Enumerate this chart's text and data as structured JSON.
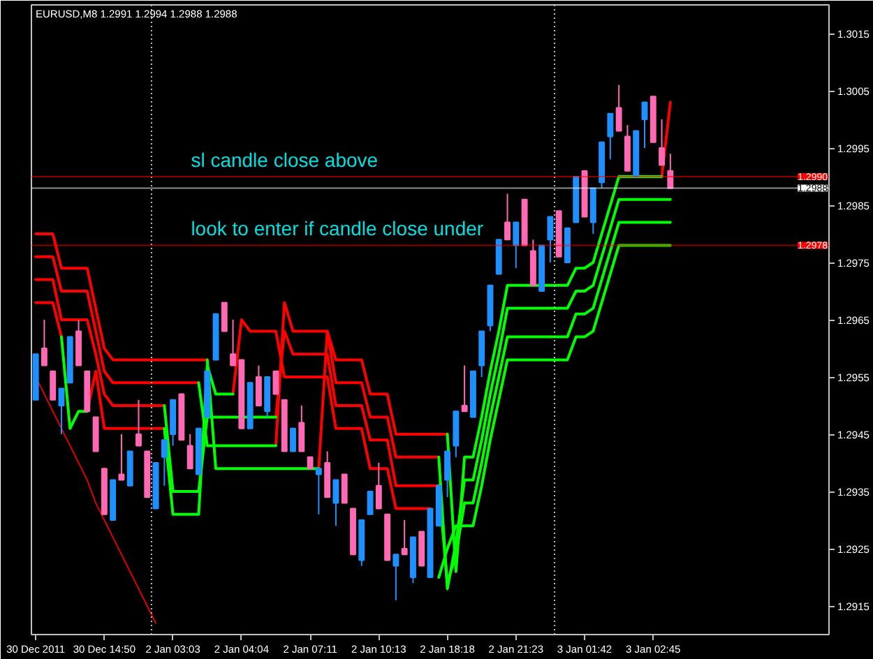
{
  "chart_data": {
    "type": "candlestick",
    "title": "EURUSD,M8 1.2991 1.2994 1.2988 1.2988",
    "categories": [
      "30 Dec 2011",
      null,
      null,
      null,
      null,
      null,
      null,
      null,
      "30 Dec 14:50",
      null,
      null,
      null,
      null,
      null,
      null,
      null,
      "2 Jan 03:03",
      null,
      null,
      null,
      null,
      null,
      null,
      null,
      "2 Jan 04:04",
      null,
      null,
      null,
      null,
      null,
      null,
      null,
      "2 Jan 07:11",
      null,
      null,
      null,
      null,
      null,
      null,
      null,
      "2 Jan 10:13",
      null,
      null,
      null,
      null,
      null,
      null,
      null,
      "2 Jan 18:18",
      null,
      null,
      null,
      null,
      null,
      null,
      null,
      "2 Jan 21:23",
      null,
      null,
      null,
      null,
      null,
      null,
      null,
      "3 Jan 01:42",
      null,
      null,
      null,
      null,
      null,
      null,
      null,
      "3 Jan 02:45",
      null,
      null,
      null,
      null,
      null,
      null,
      null,
      null,
      null,
      null,
      null,
      null,
      null,
      null,
      null,
      null,
      null,
      null,
      null,
      null
    ],
    "ohlc": [
      [
        1.2951,
        1.2959,
        1.2951,
        1.2959
      ],
      [
        1.296,
        1.2965,
        1.2957,
        1.2957
      ],
      [
        1.2956,
        1.2956,
        1.2951,
        1.2951
      ],
      [
        1.295,
        1.2953,
        1.2945,
        1.2953
      ],
      [
        1.2954,
        1.2962,
        1.2954,
        1.2962
      ],
      [
        1.2963,
        1.2965,
        1.2957,
        1.2957
      ],
      [
        1.2956,
        1.2956,
        1.2949,
        1.2949
      ],
      [
        1.2948,
        1.2948,
        1.2942,
        1.2942
      ],
      [
        1.2939,
        1.2939,
        1.2931,
        1.2931
      ],
      [
        1.293,
        1.2937,
        1.293,
        1.2937
      ],
      [
        1.2938,
        1.2945,
        1.2937,
        1.2937
      ],
      [
        1.2936,
        1.2942,
        1.2936,
        1.2942
      ],
      [
        1.2945,
        1.2951,
        1.2943,
        1.2943
      ],
      [
        1.2942,
        1.2942,
        1.2934,
        1.2934
      ],
      [
        1.2932,
        1.294,
        1.2932,
        1.294
      ],
      [
        1.2941,
        1.2944,
        1.2936,
        1.2944
      ],
      [
        1.2945,
        1.2951,
        1.2943,
        1.2951
      ],
      [
        1.2952,
        1.2952,
        1.2944,
        1.2944
      ],
      [
        1.2943,
        1.2945,
        1.2939,
        1.2939
      ],
      [
        1.2938,
        1.2946,
        1.2938,
        1.2946
      ],
      [
        1.2948,
        1.2956,
        1.2948,
        1.2956
      ],
      [
        1.2958,
        1.2966,
        1.2958,
        1.2966
      ],
      [
        1.2968,
        1.2968,
        1.2963,
        1.2963
      ],
      [
        1.2959,
        1.2965,
        1.2957,
        1.2957
      ],
      [
        1.2958,
        1.2958,
        1.2946,
        1.2946
      ],
      [
        1.2946,
        1.2954,
        1.2946,
        1.2954
      ],
      [
        1.2955,
        1.2957,
        1.295,
        1.295
      ],
      [
        1.2949,
        1.2955,
        1.2948,
        1.2955
      ],
      [
        1.2956,
        1.2956,
        1.2952,
        1.2952
      ],
      [
        1.2951,
        1.2951,
        1.2942,
        1.2942
      ],
      [
        1.2942,
        1.2946,
        1.2942,
        1.2946
      ],
      [
        1.2947,
        1.295,
        1.2942,
        1.2942
      ],
      [
        1.2941,
        1.2941,
        1.2939,
        1.2939
      ],
      [
        1.2938,
        1.2939,
        1.2931,
        1.2939
      ],
      [
        1.294,
        1.2942,
        1.2934,
        1.2934
      ],
      [
        1.2933,
        1.2937,
        1.2929,
        1.2937
      ],
      [
        1.2938,
        1.2938,
        1.2933,
        1.2933
      ],
      [
        1.2932,
        1.2932,
        1.2924,
        1.2924
      ],
      [
        1.2923,
        1.293,
        1.2922,
        1.293
      ],
      [
        1.2931,
        1.2935,
        1.2931,
        1.2935
      ],
      [
        1.2936,
        1.294,
        1.2932,
        1.2932
      ],
      [
        1.2931,
        1.2931,
        1.2923,
        1.2923
      ],
      [
        1.2922,
        1.2924,
        1.2916,
        1.2924
      ],
      [
        1.2925,
        1.293,
        1.2924,
        1.2924
      ],
      [
        1.292,
        1.2927,
        1.2919,
        1.2927
      ],
      [
        1.2928,
        1.2928,
        1.2922,
        1.2922
      ],
      [
        1.292,
        1.2932,
        1.292,
        1.2932
      ],
      [
        1.2929,
        1.2936,
        1.2929,
        1.2936
      ],
      [
        1.2937,
        1.2942,
        1.2934,
        1.2942
      ],
      [
        1.2943,
        1.2949,
        1.2941,
        1.2949
      ],
      [
        1.295,
        1.2957,
        1.2949,
        1.2949
      ],
      [
        1.2948,
        1.2956,
        1.2948,
        1.2956
      ],
      [
        1.2957,
        1.2963,
        1.2955,
        1.2963
      ],
      [
        1.2964,
        1.2971,
        1.2963,
        1.2971
      ],
      [
        1.2973,
        1.2979,
        1.2973,
        1.2979
      ],
      [
        1.2982,
        1.2987,
        1.2979,
        1.2979
      ],
      [
        1.2978,
        1.2982,
        1.2974,
        1.2982
      ],
      [
        1.2986,
        1.2986,
        1.2978,
        1.2978
      ],
      [
        1.2977,
        1.2979,
        1.2971,
        1.2971
      ],
      [
        1.297,
        1.2978,
        1.297,
        1.2978
      ],
      [
        1.2979,
        1.2983,
        1.2975,
        1.2983
      ],
      [
        1.2984,
        1.2984,
        1.2976,
        1.2976
      ],
      [
        1.2975,
        1.2981,
        1.2975,
        1.2981
      ],
      [
        1.2982,
        1.299,
        1.2982,
        1.299
      ],
      [
        1.2991,
        1.2991,
        1.2983,
        1.2983
      ],
      [
        1.2982,
        1.2988,
        1.298,
        1.2988
      ],
      [
        1.2989,
        1.2996,
        1.2988,
        1.2996
      ],
      [
        1.2997,
        1.3001,
        1.2993,
        1.3001
      ],
      [
        1.3002,
        1.3006,
        1.2998,
        1.2998
      ],
      [
        1.2997,
        1.2999,
        1.2991,
        1.2991
      ],
      [
        1.299,
        1.2998,
        1.299,
        1.2998
      ],
      [
        1.3,
        1.3003,
        1.2995,
        1.3003
      ],
      [
        1.3004,
        1.3004,
        1.2996,
        1.2996
      ],
      [
        1.2995,
        1.3,
        1.2992,
        1.2992
      ],
      [
        1.2991,
        1.2994,
        1.2988,
        1.2988
      ],
      null,
      null,
      null,
      null,
      null,
      null,
      null,
      null,
      null,
      null,
      null,
      null,
      null,
      null,
      null,
      null,
      null,
      null
    ],
    "colors": [
      "#1e90ff",
      "#ff69b4",
      "#ff69b4",
      "#1e90ff",
      "#1e90ff",
      "#ff69b4",
      "#ff69b4",
      "#ff69b4",
      "#ff69b4",
      "#1e90ff",
      "#ff69b4",
      "#1e90ff",
      "#ff69b4",
      "#ff69b4",
      "#1e90ff",
      "#1e90ff",
      "#1e90ff",
      "#ff69b4",
      "#ff69b4",
      "#1e90ff",
      "#1e90ff",
      "#1e90ff",
      "#ff69b4",
      "#ff69b4",
      "#ff69b4",
      "#1e90ff",
      "#ff69b4",
      "#1e90ff",
      "#ff69b4",
      "#ff69b4",
      "#1e90ff",
      "#ff69b4",
      "#ff69b4",
      "#1e90ff",
      "#ff69b4",
      "#1e90ff",
      "#ff69b4",
      "#ff69b4",
      "#1e90ff",
      "#1e90ff",
      "#ff69b4",
      "#ff69b4",
      "#1e90ff",
      "#ff69b4",
      "#1e90ff",
      "#ff69b4",
      "#1e90ff",
      "#1e90ff",
      "#1e90ff",
      "#1e90ff",
      "#ff69b4",
      "#1e90ff",
      "#1e90ff",
      "#1e90ff",
      "#1e90ff",
      "#ff69b4",
      "#1e90ff",
      "#ff69b4",
      "#ff69b4",
      "#1e90ff",
      "#1e90ff",
      "#ff69b4",
      "#1e90ff",
      "#1e90ff",
      "#ff69b4",
      "#1e90ff",
      "#1e90ff",
      "#1e90ff",
      "#ff69b4",
      "#ff69b4",
      "#1e90ff",
      "#1e90ff",
      "#ff69b4",
      "#ff69b4",
      "#ff69b4",
      null,
      null,
      null,
      null,
      null,
      null,
      null,
      null,
      null,
      null,
      null,
      null,
      null,
      null,
      null,
      null,
      null,
      null
    ],
    "series": [
      {
        "type": "line",
        "color": "#ff0000",
        "values": [
          1.298,
          1.298,
          1.298,
          1.2974,
          1.2974,
          1.2974,
          1.2974,
          1.2967,
          1.296,
          1.2958,
          1.2958,
          1.2958,
          1.2958,
          1.2958,
          1.2958,
          1.2958,
          1.2958,
          1.2958,
          1.2958,
          1.2958,
          1.2958,
          null,
          null,
          null,
          null,
          null,
          null,
          null,
          null,
          null,
          null,
          null,
          null,
          1.2939,
          1.2963,
          1.2958,
          1.2958,
          1.2958,
          1.2958,
          1.2952,
          1.2952,
          1.2952,
          1.2945,
          1.2945,
          1.2945,
          1.2945,
          1.2945,
          1.2945,
          1.2945,
          null,
          null,
          null,
          null,
          null,
          null,
          null,
          null,
          null,
          null,
          null,
          null,
          null,
          null,
          null,
          null,
          null,
          null,
          null,
          null,
          null,
          null,
          null,
          null,
          1.299,
          1.3003,
          null,
          null,
          null,
          null,
          null,
          null,
          null,
          null,
          null,
          null,
          null,
          null,
          null,
          null,
          null,
          null,
          null,
          null
        ]
      },
      {
        "type": "line",
        "color": "#ff0000",
        "values": [
          1.2976,
          1.2976,
          1.2976,
          1.297,
          1.297,
          1.297,
          1.297,
          1.2963,
          1.2956,
          1.2954,
          1.2954,
          1.2954,
          1.2954,
          1.2954,
          1.2954,
          1.2954,
          1.2954,
          1.2954,
          1.2954,
          1.2954,
          null,
          null,
          null,
          null,
          null,
          null,
          null,
          null,
          1.2943,
          1.2968,
          1.2963,
          1.2963,
          1.2963,
          1.2963,
          1.2963,
          1.2954,
          1.2954,
          1.2954,
          1.2954,
          1.2948,
          1.2948,
          1.2948,
          1.2941,
          1.2941,
          1.2941,
          1.2941,
          1.2941,
          1.2941,
          null,
          null,
          null,
          null,
          null,
          null,
          null,
          null,
          null,
          null,
          null,
          null,
          null,
          null,
          null,
          null,
          null,
          null,
          null,
          null,
          null,
          null,
          null,
          null,
          null,
          null,
          null,
          null,
          null,
          null,
          null,
          null,
          null,
          null,
          null,
          null,
          null,
          null,
          null,
          null,
          null,
          null,
          null,
          null,
          null
        ]
      },
      {
        "type": "line",
        "color": "#ff0000",
        "values": [
          1.2972,
          1.2972,
          1.2972,
          1.2965,
          1.2965,
          1.2965,
          1.2965,
          1.2959,
          1.2952,
          1.295,
          1.295,
          1.295,
          1.295,
          1.295,
          1.295,
          1.295,
          null,
          null,
          null,
          null,
          null,
          null,
          null,
          null,
          null,
          null,
          null,
          null,
          1.2948,
          1.2963,
          1.2959,
          1.2959,
          1.2959,
          1.2959,
          1.2959,
          1.295,
          1.295,
          1.295,
          1.295,
          1.2944,
          1.2944,
          1.2944,
          1.2936,
          1.2936,
          1.2936,
          1.2936,
          1.2936,
          1.2936,
          null,
          null,
          null,
          null,
          null,
          null,
          null,
          null,
          null,
          null,
          null,
          null,
          null,
          null,
          null,
          null,
          null,
          null,
          null,
          null,
          null,
          null,
          null,
          null,
          null,
          null,
          null,
          null,
          null,
          null,
          null,
          null,
          null,
          null,
          null,
          null,
          null,
          null,
          null,
          null,
          null,
          null,
          null,
          null,
          null
        ]
      },
      {
        "type": "line",
        "color": "#ff0000",
        "values": [
          1.2968,
          1.2968,
          1.2968,
          1.2962,
          null,
          null,
          1.2949,
          1.2956,
          1.2946,
          1.2946,
          1.2946,
          1.2946,
          1.2946,
          1.2946,
          1.2946,
          1.2946,
          null,
          null,
          null,
          null,
          null,
          null,
          null,
          1.2952,
          1.2965,
          1.2963,
          1.2963,
          1.2963,
          1.2963,
          1.2955,
          1.2955,
          1.2955,
          1.2955,
          1.2955,
          1.2955,
          1.2946,
          1.2946,
          1.2946,
          1.2946,
          1.2939,
          1.2939,
          1.2939,
          1.2932,
          1.2932,
          1.2932,
          1.2932,
          1.2932,
          null,
          null,
          null,
          null,
          null,
          null,
          null,
          null,
          null,
          null,
          null,
          null,
          null,
          null,
          null,
          null,
          null,
          null,
          null,
          null,
          null,
          null,
          null,
          null,
          null,
          null,
          null,
          null,
          null,
          null,
          null,
          null,
          null,
          null,
          null,
          null,
          null,
          null,
          null,
          null,
          null,
          null,
          null,
          null,
          null,
          null
        ]
      },
      {
        "type": "line",
        "color": "#00ff00",
        "values": [
          null,
          null,
          null,
          null,
          null,
          null,
          null,
          null,
          null,
          null,
          null,
          null,
          null,
          null,
          null,
          null,
          null,
          null,
          null,
          null,
          1.2958,
          1.2939,
          1.2939,
          1.2939,
          1.2939,
          1.2939,
          1.2939,
          1.2939,
          1.2939,
          1.2939,
          1.2939,
          1.2939,
          1.2939,
          1.2939,
          null,
          null,
          null,
          null,
          null,
          null,
          null,
          null,
          null,
          null,
          null,
          null,
          null,
          null,
          1.2945,
          1.2921,
          1.2941,
          1.2941,
          1.2948,
          1.2956,
          1.2963,
          1.2971,
          1.2971,
          1.2971,
          1.2971,
          1.2971,
          1.2971,
          1.2971,
          1.2971,
          1.2974,
          1.2974,
          1.2975,
          1.298,
          1.2985,
          1.299,
          1.299,
          1.299,
          1.299,
          1.299,
          1.299,
          null,
          null,
          null,
          null,
          null,
          null,
          null,
          null,
          null,
          null,
          null,
          null,
          null,
          null,
          null,
          null,
          null,
          null,
          null
        ]
      },
      {
        "type": "line",
        "color": "#00ff00",
        "values": [
          null,
          null,
          null,
          null,
          null,
          null,
          null,
          null,
          null,
          null,
          null,
          null,
          null,
          null,
          null,
          null,
          null,
          null,
          null,
          1.2954,
          1.2943,
          1.2943,
          1.2943,
          1.2943,
          1.2943,
          1.2943,
          1.2943,
          1.2943,
          1.2943,
          null,
          null,
          null,
          null,
          null,
          null,
          null,
          null,
          null,
          null,
          null,
          null,
          null,
          null,
          null,
          null,
          null,
          null,
          1.2941,
          1.2918,
          1.2926,
          1.2937,
          1.2937,
          1.2944,
          1.2952,
          1.2959,
          1.2967,
          1.2967,
          1.2967,
          1.2967,
          1.2967,
          1.2967,
          1.2967,
          1.2967,
          1.297,
          1.297,
          1.2971,
          1.2976,
          1.2981,
          1.2986,
          1.2986,
          1.2986,
          1.2986,
          1.2986,
          1.2986,
          1.2986,
          null,
          null,
          null,
          null,
          null,
          null,
          null,
          null,
          null,
          null,
          null,
          null,
          null,
          null,
          null,
          null,
          null,
          null
        ]
      },
      {
        "type": "line",
        "color": "#00ff00",
        "values": [
          null,
          null,
          null,
          null,
          null,
          null,
          null,
          null,
          null,
          null,
          null,
          null,
          null,
          null,
          null,
          1.295,
          1.2935,
          1.2935,
          1.2935,
          1.2935,
          1.2948,
          1.2948,
          1.2948,
          1.2948,
          1.2948,
          1.2948,
          1.2948,
          1.2948,
          1.2948,
          null,
          null,
          null,
          null,
          null,
          null,
          null,
          null,
          null,
          null,
          null,
          null,
          null,
          null,
          null,
          null,
          null,
          null,
          1.2936,
          1.2919,
          1.2924,
          1.2933,
          1.2933,
          1.294,
          1.2948,
          1.2955,
          1.2962,
          1.2962,
          1.2962,
          1.2962,
          1.2962,
          1.2962,
          1.2962,
          1.2962,
          1.2966,
          1.2966,
          1.2967,
          1.2972,
          1.2977,
          1.2982,
          1.2982,
          1.2982,
          1.2982,
          1.2982,
          1.2982,
          1.2982,
          null,
          null,
          null,
          null,
          null,
          null,
          null,
          null,
          null,
          null,
          null,
          null,
          null,
          null,
          null,
          null,
          null,
          null
        ]
      },
      {
        "type": "line",
        "color": "#00ff00",
        "values": [
          null,
          null,
          null,
          1.2962,
          1.2946,
          1.2949,
          1.2949,
          null,
          null,
          null,
          null,
          null,
          null,
          null,
          null,
          1.2946,
          1.2931,
          1.2931,
          1.2931,
          1.2931,
          1.2957,
          1.2952,
          1.2952,
          1.2952,
          null,
          null,
          null,
          null,
          null,
          null,
          null,
          null,
          null,
          null,
          null,
          null,
          null,
          null,
          null,
          null,
          null,
          null,
          null,
          null,
          null,
          null,
          null,
          1.292,
          1.2925,
          1.2929,
          1.2929,
          1.2929,
          1.2936,
          1.2944,
          1.2951,
          1.2958,
          1.2958,
          1.2958,
          1.2958,
          1.2958,
          1.2958,
          1.2958,
          1.2958,
          1.2962,
          1.2962,
          1.2963,
          1.2968,
          1.2973,
          1.2978,
          1.2978,
          1.2978,
          1.2978,
          1.2978,
          1.2978,
          1.2978,
          null,
          null,
          null,
          null,
          null,
          null,
          null,
          null,
          null,
          null,
          null,
          null,
          null,
          null,
          null,
          null,
          null,
          null
        ]
      },
      {
        "type": "line",
        "color": "#e00000",
        "values": [
          1.2955,
          1.2952,
          1.2949,
          1.2946,
          1.2943,
          1.294,
          1.2937,
          1.2933,
          1.293,
          1.2927,
          1.2924,
          1.2921,
          1.2918,
          1.2915,
          1.2912,
          null,
          null,
          null,
          null,
          null,
          null,
          null,
          null,
          null,
          null,
          null,
          null,
          null,
          null,
          null,
          null,
          null,
          null,
          null,
          null,
          null,
          null,
          null,
          null,
          null,
          null,
          null,
          null,
          null,
          null,
          null,
          null,
          null,
          null,
          null,
          null,
          null,
          null,
          null,
          null,
          null,
          null,
          null,
          null,
          null,
          null,
          null,
          null,
          null,
          null,
          null,
          null,
          null,
          null,
          null,
          null,
          null,
          null,
          null,
          null,
          null,
          null,
          null,
          null,
          null,
          null,
          null,
          null,
          null,
          null,
          null,
          null,
          null,
          null,
          null,
          null,
          null,
          null
        ]
      }
    ],
    "ylim": [
      1.291,
      1.302
    ],
    "yticks": [
      1.2915,
      1.2925,
      1.2935,
      1.2945,
      1.2955,
      1.2965,
      1.2975,
      1.2985,
      1.2995,
      1.3005,
      1.3015
    ],
    "ref_lines": [
      {
        "axis": "y",
        "value": 1.299,
        "label": "1.2990",
        "color": "#ff0000"
      },
      {
        "axis": "y",
        "value": 1.2988,
        "label": "1.2988",
        "color": "#ffffff"
      },
      {
        "axis": "y",
        "value": 1.2978,
        "label": "1.2978",
        "color": "#ff0000"
      }
    ],
    "annotations": [
      {
        "text": "sl candle close above",
        "y": 1.299
      },
      {
        "text": "look to enter if candle close under",
        "y": 1.2978
      }
    ],
    "grid": false
  }
}
